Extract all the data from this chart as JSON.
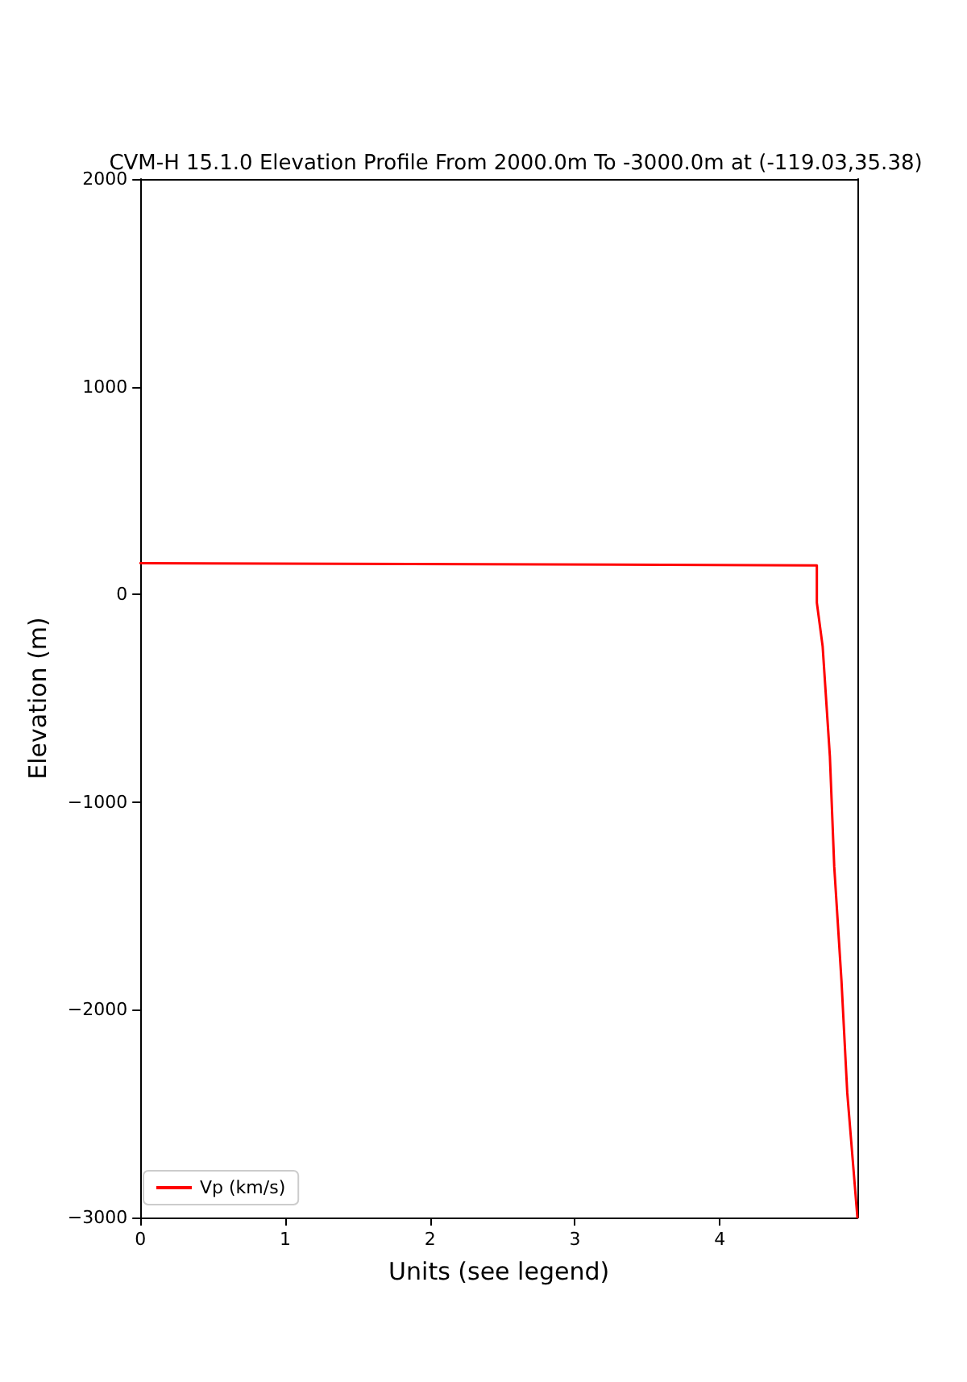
{
  "chart_data": {
    "type": "line",
    "title": "CVM-H 15.1.0 Elevation Profile From 2000.0m To -3000.0m at (-119.03,35.38)",
    "xlabel": "Units (see legend)",
    "ylabel": "Elevation (m)",
    "series": [
      {
        "name": "Vp (km/s)",
        "color": "#ff0000",
        "x": [
          0,
          4.67,
          4.67,
          4.71,
          4.76,
          4.79,
          4.84,
          4.88,
          4.95
        ],
        "values": [
          150,
          140,
          -40,
          -250,
          -780,
          -1310,
          -1860,
          -2400,
          -3000
        ]
      }
    ],
    "xlim": [
      0,
      4.95
    ],
    "xticks": [
      0,
      1,
      2,
      3,
      4
    ],
    "ylim": [
      -3000,
      2000
    ],
    "yticks": [
      -3000,
      -2000,
      -1000,
      0,
      1000,
      2000
    ],
    "legend": "bottom left",
    "grid": false,
    "marker": "none",
    "line_style": "solid"
  }
}
